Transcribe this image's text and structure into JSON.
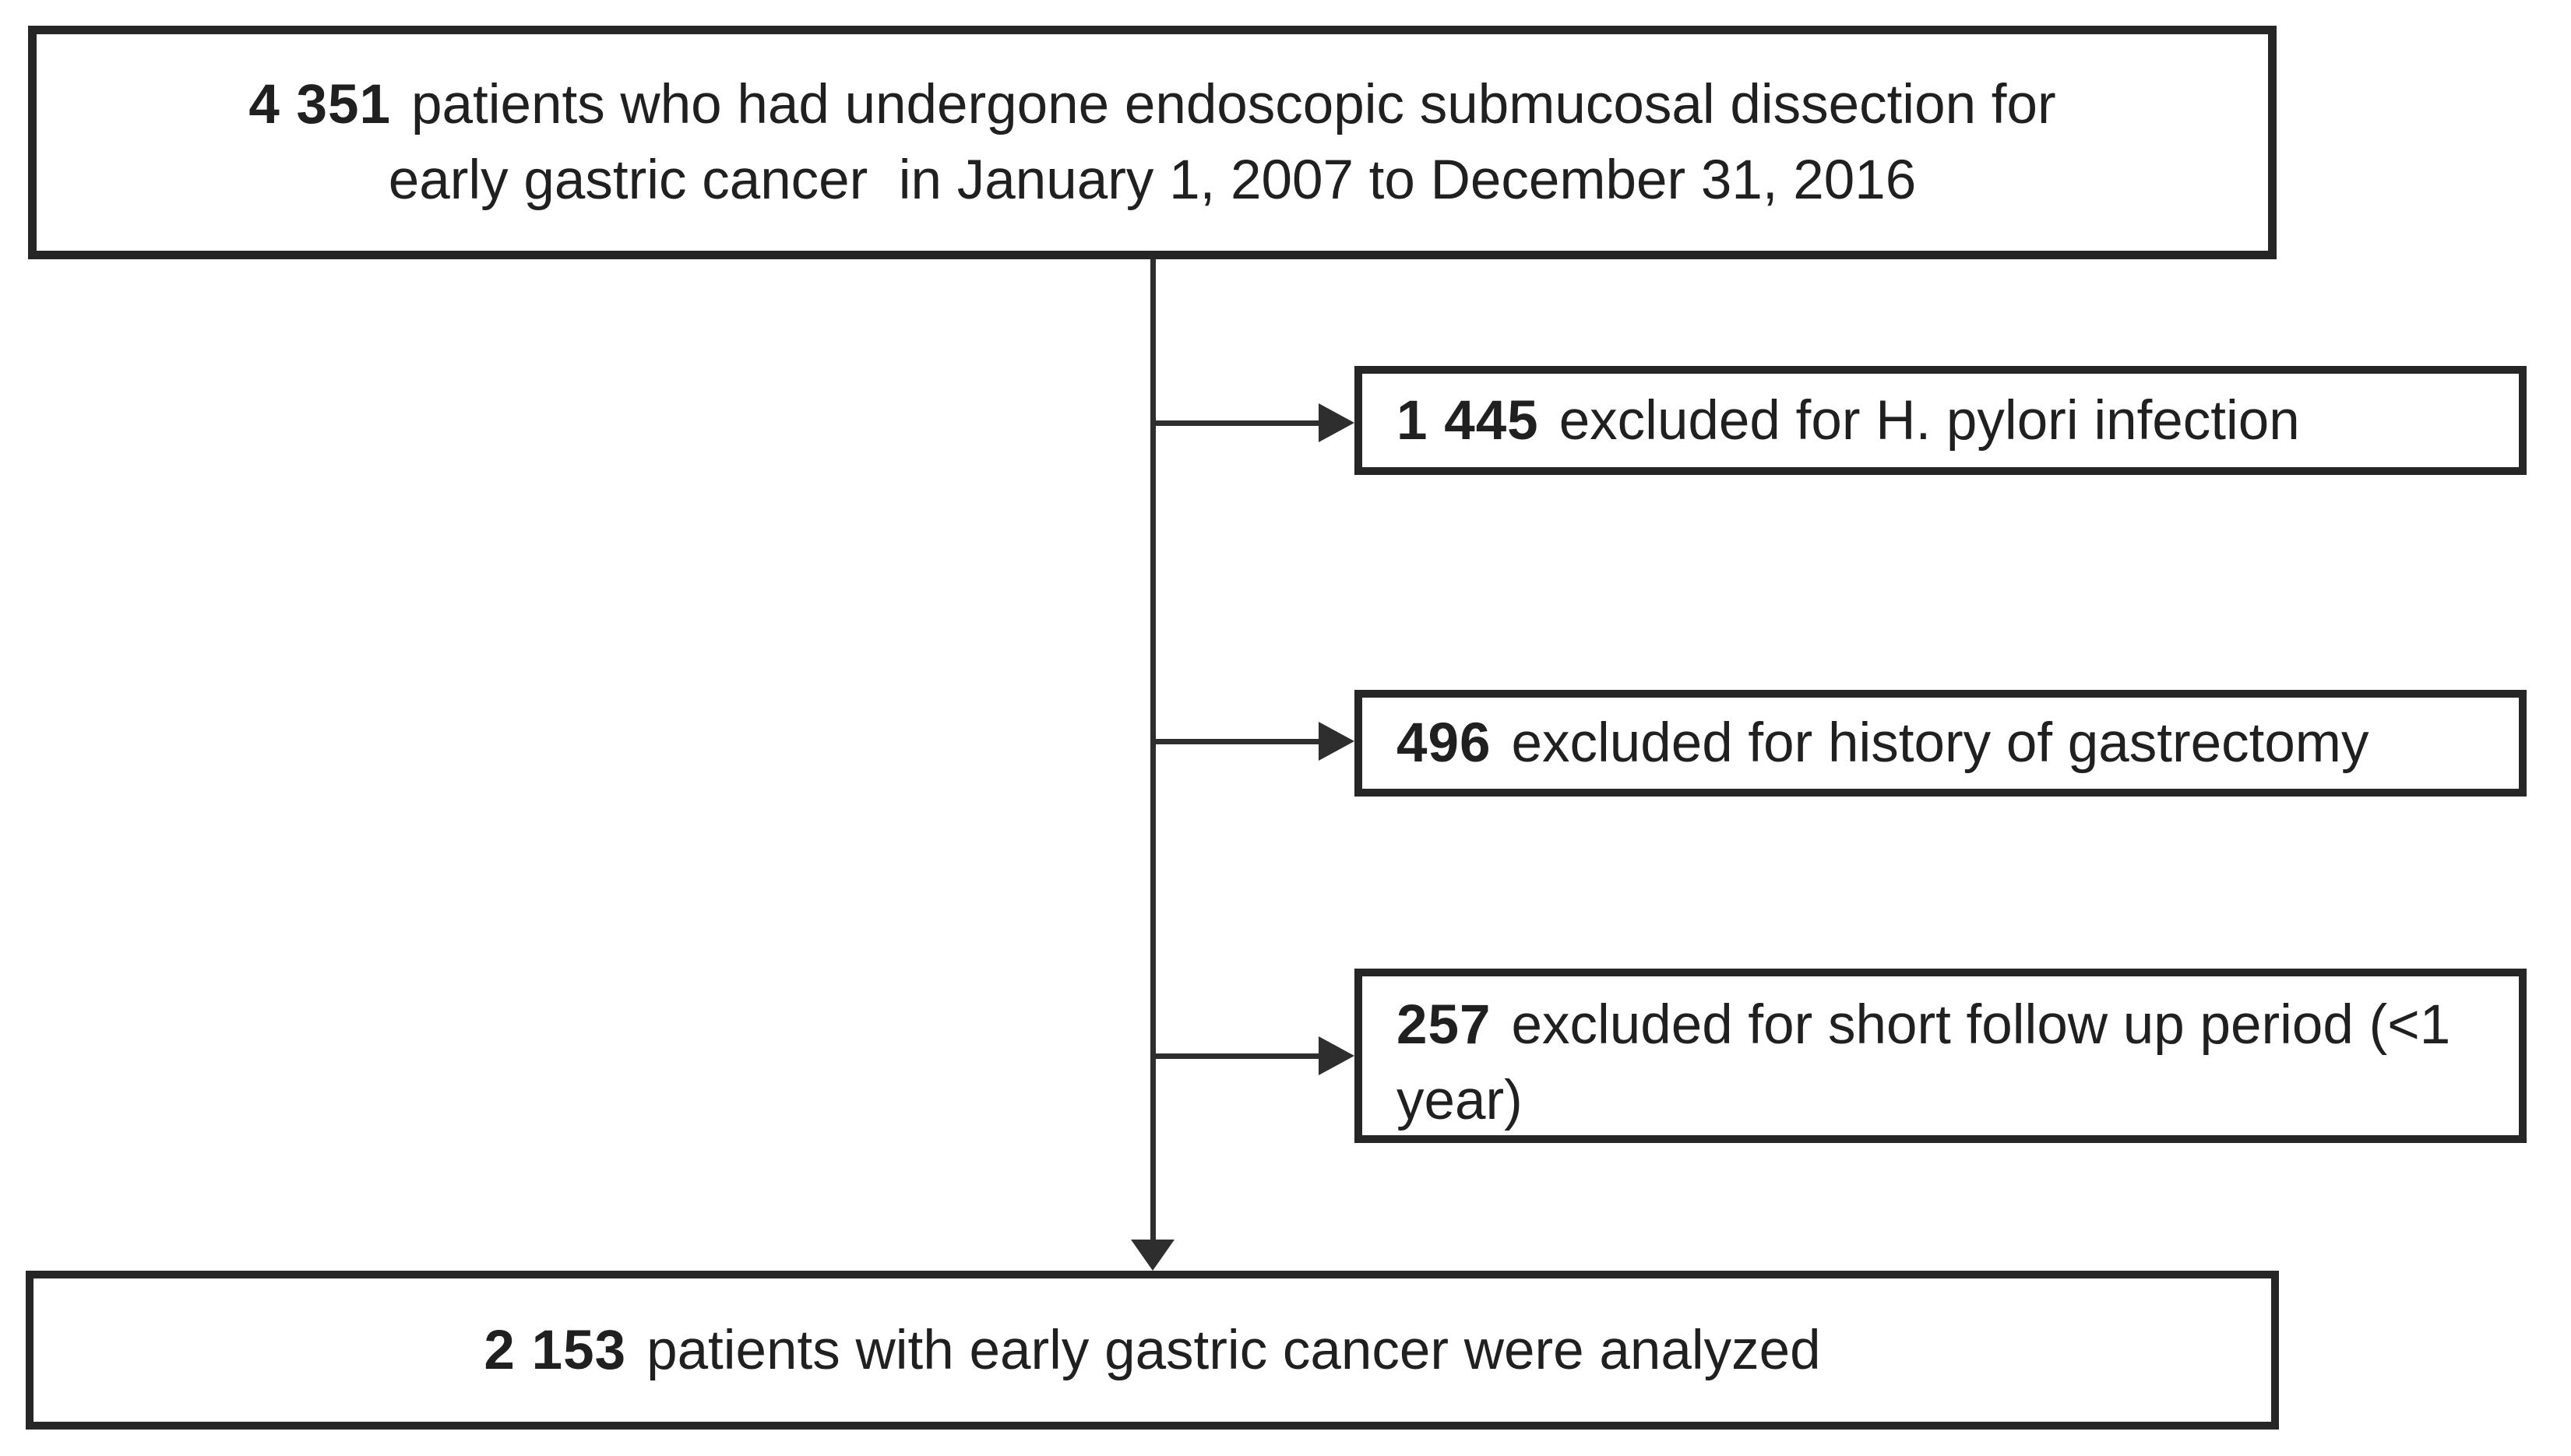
{
  "diagram": {
    "type": "flowchart",
    "title": "Patient selection flow for endoscopic submucosal dissection study",
    "colors": {
      "background": "#ffffff",
      "box_border": "#262626",
      "text": "#202020",
      "connector": "#2e2e2e"
    },
    "source_box": {
      "count": "4 351",
      "line1": "patients who had undergone endoscopic submucosal dissection for",
      "line2": "early gastric cancer  in January 1, 2007 to December 31, 2016"
    },
    "exclusions": [
      {
        "count": "1 445",
        "label": "excluded for H. pylori infection"
      },
      {
        "count": "496",
        "label": "excluded for history of gastrectomy"
      },
      {
        "count": "257",
        "label": "excluded for short follow up period (<1 year)"
      }
    ],
    "result_box": {
      "count": "2 153",
      "label": "patients with early gastric cancer were analyzed"
    }
  }
}
